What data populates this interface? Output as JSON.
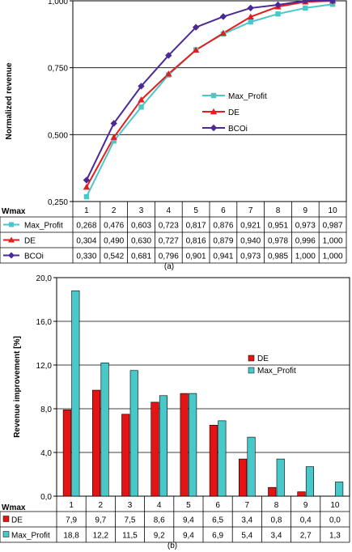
{
  "chart_data": [
    {
      "type": "line",
      "ylabel": "Normalized revenue",
      "ylim": [
        0.25,
        1.0
      ],
      "yticks": [
        "0,250",
        "0,500",
        "0,750",
        "1,000"
      ],
      "table_header": "Wmax",
      "categories": [
        "1",
        "2",
        "3",
        "4",
        "5",
        "6",
        "7",
        "8",
        "9",
        "10"
      ],
      "series": [
        {
          "name": "Max_Profit",
          "color": "#48C8C8",
          "marker": "square",
          "values": [
            0.268,
            0.476,
            0.603,
            0.723,
            0.817,
            0.876,
            0.921,
            0.951,
            0.973,
            0.987
          ],
          "labels": [
            "0,268",
            "0,476",
            "0,603",
            "0,723",
            "0,817",
            "0,876",
            "0,921",
            "0,951",
            "0,973",
            "0,987"
          ]
        },
        {
          "name": "DE",
          "color": "#E41E1E",
          "marker": "triangle",
          "values": [
            0.304,
            0.49,
            0.63,
            0.727,
            0.816,
            0.879,
            0.94,
            0.978,
            0.996,
            1.0
          ],
          "labels": [
            "0,304",
            "0,490",
            "0,630",
            "0,727",
            "0,816",
            "0,879",
            "0,940",
            "0,978",
            "0,996",
            "1,000"
          ]
        },
        {
          "name": "BCOi",
          "color": "#4B2A96",
          "marker": "diamond",
          "values": [
            0.33,
            0.542,
            0.681,
            0.796,
            0.901,
            0.941,
            0.973,
            0.985,
            1.0,
            1.0
          ],
          "labels": [
            "0,330",
            "0,542",
            "0,681",
            "0,796",
            "0,901",
            "0,941",
            "0,973",
            "0,985",
            "1,000",
            "1,000"
          ]
        }
      ],
      "legend_position": "right",
      "caption": "(a)"
    },
    {
      "type": "bar",
      "ylabel": "Revenue improvement [%]",
      "ylim": [
        0,
        20
      ],
      "yticks": [
        "0,0",
        "4,0",
        "8,0",
        "12,0",
        "16,0",
        "20,0"
      ],
      "table_header": "Wmax",
      "categories": [
        "1",
        "2",
        "3",
        "4",
        "5",
        "6",
        "7",
        "8",
        "9",
        "10"
      ],
      "series": [
        {
          "name": "DE",
          "color": "#E41414",
          "values": [
            7.9,
            9.7,
            7.5,
            8.6,
            9.4,
            6.5,
            3.4,
            0.8,
            0.4,
            0.0
          ],
          "labels": [
            "7,9",
            "9,7",
            "7,5",
            "8,6",
            "9,4",
            "6,5",
            "3,4",
            "0,8",
            "0,4",
            "0,0"
          ]
        },
        {
          "name": "Max_Profit",
          "color": "#48C8C8",
          "values": [
            18.8,
            12.2,
            11.5,
            9.2,
            9.4,
            6.9,
            5.4,
            3.4,
            2.7,
            1.3
          ],
          "labels": [
            "18,8",
            "12,2",
            "11,5",
            "9,2",
            "9,4",
            "6,9",
            "5,4",
            "3,4",
            "2,7",
            "1,3"
          ]
        }
      ],
      "legend_position": "right",
      "caption": "(b)"
    }
  ]
}
